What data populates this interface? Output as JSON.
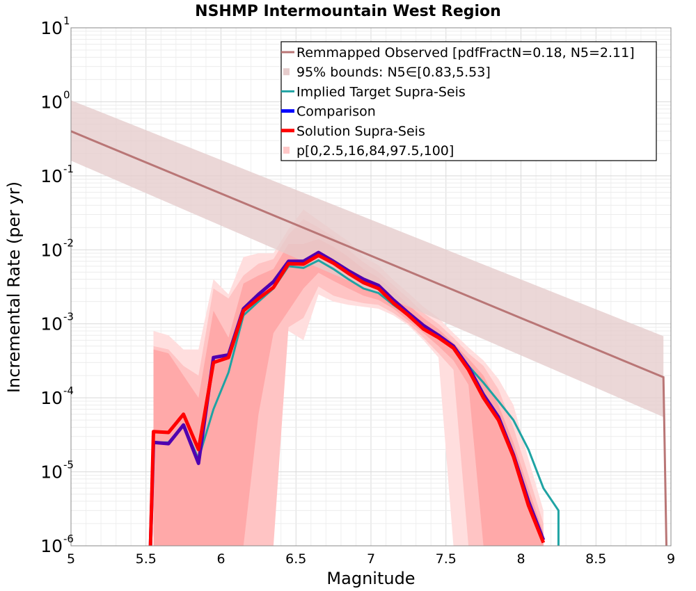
{
  "chart_data": {
    "type": "line",
    "title": "NSHMP Intermountain West Region",
    "xlabel": "Magnitude",
    "ylabel": "Incremental Rate (per yr)",
    "xlim": [
      5,
      9
    ],
    "ylim": [
      1e-06,
      10
    ],
    "yscale": "log",
    "grid": true,
    "legend_position": "top-right",
    "x_ticks": [
      "5",
      "5.5",
      "6",
      "6.5",
      "7",
      "7.5",
      "8",
      "8.5",
      "9"
    ],
    "y_ticks": [
      {
        "base": "10",
        "exp": "1"
      },
      {
        "base": "10",
        "exp": "0"
      },
      {
        "base": "10",
        "exp": "-1"
      },
      {
        "base": "10",
        "exp": "-2"
      },
      {
        "base": "10",
        "exp": "-3"
      },
      {
        "base": "10",
        "exp": "-4"
      },
      {
        "base": "10",
        "exp": "-5"
      },
      {
        "base": "10",
        "exp": "-6"
      }
    ],
    "legend": [
      {
        "label": "Remmapped Observed [pdfFractN=0.18, N5=2.11]",
        "color": "#b97676",
        "kind": "line"
      },
      {
        "label": "95% bounds: N5∈[0.83,5.53]",
        "color": "#e6cccc",
        "kind": "box"
      },
      {
        "label": "Implied Target Supra-Seis",
        "color": "#1ea3a3",
        "kind": "line"
      },
      {
        "label": "Comparison",
        "color": "#0000ff",
        "kind": "thick"
      },
      {
        "label": "Solution Supra-Seis",
        "color": "#ff0000",
        "kind": "thick"
      },
      {
        "label": "p[0,2.5,16,84,97.5,100]",
        "color": "#ffc8c8",
        "kind": "box"
      }
    ],
    "observed": {
      "x": [
        5.0,
        8.95,
        8.97
      ],
      "y": [
        0.4,
        0.00019,
        1e-06
      ],
      "color": "#b97676"
    },
    "observed_bounds": {
      "x": [
        5.0,
        8.95
      ],
      "upper": [
        1.05,
        0.00068
      ],
      "lower": [
        0.16,
        5.5e-05
      ],
      "color": "#e6cccc"
    },
    "implied_target": {
      "x": [
        5.55,
        5.65,
        5.75,
        5.85,
        5.95,
        6.05,
        6.15,
        6.25,
        6.35,
        6.45,
        6.55,
        6.65,
        6.75,
        6.85,
        6.95,
        7.05,
        7.15,
        7.25,
        7.35,
        7.45,
        7.55,
        7.65,
        7.75,
        7.85,
        7.95,
        8.05,
        8.15,
        8.25,
        8.25
      ],
      "y": [
        2.5e-05,
        2.5e-05,
        4.3e-05,
        1.5e-05,
        7e-05,
        0.00022,
        0.0013,
        0.002,
        0.003,
        0.006,
        0.0057,
        0.0072,
        0.0055,
        0.004,
        0.003,
        0.0026,
        0.0018,
        0.0013,
        0.00088,
        0.00065,
        0.00046,
        0.00027,
        0.00016,
        9e-05,
        5e-05,
        2e-05,
        6e-06,
        3e-06,
        1e-06
      ],
      "color": "#1ea3a3"
    },
    "comparison": {
      "x": [
        5.53,
        5.55,
        5.65,
        5.75,
        5.85,
        5.95,
        6.05,
        6.15,
        6.25,
        6.35,
        6.45,
        6.55,
        6.65,
        6.75,
        6.85,
        6.95,
        7.05,
        7.15,
        7.25,
        7.35,
        7.45,
        7.55,
        7.65,
        7.75,
        7.85,
        7.95,
        8.05,
        8.15
      ],
      "y": [
        1e-06,
        2.5e-05,
        2.4e-05,
        4.3e-05,
        1.3e-05,
        0.00035,
        0.00038,
        0.0016,
        0.0025,
        0.0037,
        0.007,
        0.007,
        0.0092,
        0.007,
        0.0052,
        0.004,
        0.0033,
        0.0021,
        0.0014,
        0.00095,
        0.0007,
        0.0005,
        0.00026,
        0.00011,
        5.5e-05,
        1.7e-05,
        4e-06,
        1.2e-06
      ],
      "color": "#5000b0"
    },
    "solution": {
      "x": [
        5.53,
        5.55,
        5.65,
        5.75,
        5.85,
        5.95,
        6.05,
        6.15,
        6.25,
        6.35,
        6.45,
        6.55,
        6.65,
        6.75,
        6.85,
        6.95,
        7.05,
        7.15,
        7.25,
        7.35,
        7.45,
        7.55,
        7.65,
        7.75,
        7.85,
        7.95,
        8.05,
        8.15
      ],
      "y": [
        1e-06,
        3.5e-05,
        3.4e-05,
        6e-05,
        2e-05,
        0.0003,
        0.00035,
        0.0015,
        0.0022,
        0.0031,
        0.0065,
        0.0064,
        0.0084,
        0.0066,
        0.0048,
        0.0036,
        0.003,
        0.0019,
        0.0013,
        0.00085,
        0.00065,
        0.00047,
        0.00024,
        0.0001,
        5e-05,
        1.6e-05,
        3.5e-06,
        1.1e-06
      ],
      "color": "#ff0000"
    },
    "percentile_bands": {
      "x": [
        5.55,
        5.65,
        5.75,
        5.85,
        5.95,
        6.05,
        6.15,
        6.25,
        6.35,
        6.45,
        6.55,
        6.65,
        6.75,
        6.85,
        6.95,
        7.05,
        7.15,
        7.25,
        7.35,
        7.45,
        7.55,
        7.65,
        7.75,
        7.85,
        7.95,
        8.05,
        8.15
      ],
      "p0": [
        1e-06,
        1e-06,
        1e-06,
        1e-06,
        1e-06,
        1e-06,
        1e-06,
        1e-06,
        0.0006,
        0.0008,
        0.0006,
        0.0025,
        0.002,
        0.0018,
        0.0017,
        0.0016,
        0.0013,
        0.00095,
        0.0006,
        0.00035,
        1e-06,
        1e-06,
        1e-06,
        1e-06,
        1e-06,
        1e-06,
        1e-06
      ],
      "p2_5": [
        1e-06,
        1e-06,
        1e-06,
        1e-06,
        1e-06,
        1e-06,
        1e-06,
        1e-06,
        1e-06,
        0.0009,
        0.0012,
        0.0032,
        0.0024,
        0.0021,
        0.0019,
        0.0018,
        0.0014,
        0.001,
        0.00065,
        0.0004,
        0.00024,
        1e-06,
        1e-06,
        1e-06,
        1e-06,
        1e-06,
        1e-06
      ],
      "p16": [
        1e-06,
        1e-06,
        1e-06,
        1e-06,
        1e-06,
        1e-06,
        1e-06,
        6e-05,
        0.00075,
        0.0015,
        0.003,
        0.0049,
        0.0038,
        0.003,
        0.0024,
        0.0021,
        0.0016,
        0.0011,
        0.00075,
        0.0005,
        0.00032,
        0.00015,
        1e-06,
        1e-06,
        1e-06,
        1e-06,
        1e-06
      ],
      "p84": [
        0.00045,
        0.0004,
        0.0002,
        0.0001,
        0.0015,
        0.00065,
        0.0035,
        0.0045,
        0.0055,
        0.012,
        0.012,
        0.014,
        0.011,
        0.008,
        0.0055,
        0.0042,
        0.0028,
        0.0018,
        0.0012,
        0.00085,
        0.00055,
        0.00034,
        0.0002,
        8e-05,
        2.5e-05,
        6e-06,
        1.5e-06
      ],
      "p97_5": [
        0.0005,
        0.00045,
        0.00027,
        0.0002,
        0.003,
        0.0022,
        0.0045,
        0.0065,
        0.0075,
        0.016,
        0.026,
        0.02,
        0.015,
        0.01,
        0.0068,
        0.005,
        0.0033,
        0.0022,
        0.0014,
        0.001,
        0.00065,
        0.0004,
        0.00027,
        0.00013,
        4e-05,
        9e-06,
        2e-06
      ],
      "p100": [
        0.0008,
        0.0007,
        0.00045,
        0.00045,
        0.004,
        0.0025,
        0.008,
        0.009,
        0.009,
        0.019,
        0.035,
        0.025,
        0.018,
        0.013,
        0.008,
        0.0062,
        0.0039,
        0.0026,
        0.0017,
        0.0012,
        0.00075,
        0.00048,
        0.00032,
        0.00018,
        8e-05,
        1.5e-05,
        3e-06
      ],
      "colors": {
        "outer": "#ffdede",
        "mid": "#ffc4c4",
        "inner": "#ffa9a9"
      }
    }
  }
}
